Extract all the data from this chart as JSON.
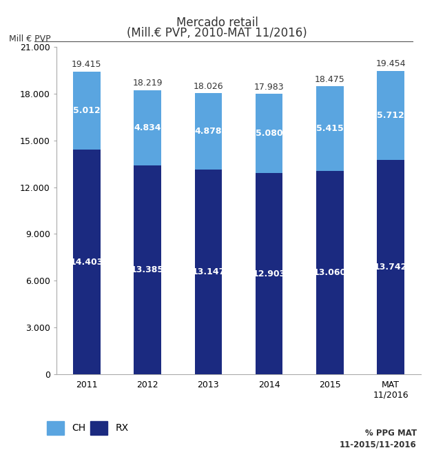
{
  "title_line1": "Mercado retail",
  "title_line2": "(Mill.€ PVP, 2010-MAT 11/2016)",
  "ylabel": "Mill € PVP",
  "categories": [
    "2011",
    "2012",
    "2013",
    "2014",
    "2015",
    "MAT\n11/2016"
  ],
  "rx_values": [
    14403,
    13385,
    13147,
    12903,
    13060,
    13742
  ],
  "ch_values": [
    5012,
    4834,
    4878,
    5080,
    5415,
    5712
  ],
  "totals": [
    19415,
    18219,
    18026,
    17983,
    18475,
    19454
  ],
  "color_rx": "#1b2a80",
  "color_ch": "#5aa5e0",
  "ylim": [
    0,
    21000
  ],
  "yticks": [
    0,
    3000,
    6000,
    9000,
    12000,
    15000,
    18000,
    21000
  ],
  "ytick_labels": [
    "0",
    "3.000",
    "6.000",
    "9.000",
    "12.000",
    "15.000",
    "18.000",
    "21.000"
  ],
  "legend_ch": "CH",
  "legend_rx": "RX",
  "ppg_label": "% PPG MAT\n11-2015/11-2016",
  "background_color": "#ffffff",
  "bar_width": 0.45,
  "title_fontsize": 12,
  "label_fontsize": 9,
  "tick_fontsize": 9,
  "total_fontsize": 9
}
